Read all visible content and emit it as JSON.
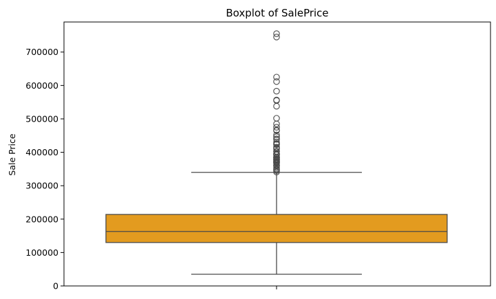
{
  "chart_data": {
    "type": "box",
    "title": "Boxplot of SalePrice",
    "xlabel": "",
    "ylabel": "Sale Price",
    "ylim": [
      0,
      790000
    ],
    "yticks": [
      0,
      100000,
      200000,
      300000,
      400000,
      500000,
      600000,
      700000
    ],
    "grid": false,
    "box_color": "#e39b1f",
    "line_color": "#4a4a4a",
    "series": [
      {
        "min": 34900,
        "q1": 129975,
        "median": 163000,
        "q3": 214000,
        "max": 340000,
        "outliers": [
          755000,
          745000,
          625000,
          611657,
          582933,
          556581,
          555000,
          538000,
          501837,
          485000,
          475000,
          466500,
          465000,
          451950,
          446261,
          440000,
          438780,
          430000,
          426000,
          424870,
          423000,
          415298,
          412500,
          410000,
          402861,
          402000,
          395192,
          395000,
          394617,
          394432,
          392500,
          392000,
          386250,
          385000,
          384500,
          383970,
          381000,
          380000,
          378500,
          377500,
          377426,
          375000,
          372500,
          372402,
          370878,
          369900,
          368500,
          367294,
          361919,
          360000,
          359100,
          354000,
          350000,
          348000,
          345000,
          341000
        ]
      }
    ]
  }
}
